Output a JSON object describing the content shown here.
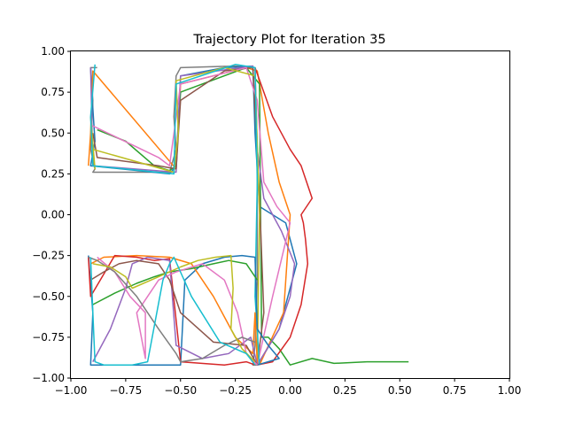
{
  "chart_data": {
    "type": "line",
    "title": "Trajectory Plot for Iteration 35",
    "xlabel": "",
    "ylabel": "",
    "xlim": [
      -1.0,
      1.0
    ],
    "ylim": [
      -1.0,
      1.0
    ],
    "grid": false,
    "legend": "none",
    "x_ticks": [
      "−1.00",
      "−0.75",
      "−0.50",
      "−0.25",
      "0.00",
      "0.25",
      "0.50",
      "0.75",
      "1.00"
    ],
    "x_tick_values": [
      -1.0,
      -0.75,
      -0.5,
      -0.25,
      0.0,
      0.25,
      0.5,
      0.75,
      1.0
    ],
    "y_ticks": [
      "−1.00",
      "−0.75",
      "−0.50",
      "−0.25",
      "0.00",
      "0.25",
      "0.50",
      "0.75",
      "1.00"
    ],
    "y_tick_values": [
      -1.0,
      -0.75,
      -0.5,
      -0.25,
      0.0,
      0.25,
      0.5,
      0.75,
      1.0
    ],
    "colors": [
      "#1f77b4",
      "#ff7f0e",
      "#2ca02c",
      "#d62728",
      "#9467bd",
      "#8c564b",
      "#e377c2",
      "#7f7f7f",
      "#bcbd22",
      "#17becf"
    ],
    "series": [
      {
        "color": "#7f7f7f",
        "x": [
          -0.88,
          -0.91,
          -0.9,
          -0.91,
          -0.89,
          -0.9,
          -0.55,
          -0.52,
          -0.53,
          -0.52,
          -0.5,
          -0.25,
          -0.16,
          -0.15,
          -0.15,
          -0.15,
          -0.16,
          -0.17,
          -0.15
        ],
        "y": [
          0.9,
          0.9,
          0.7,
          0.4,
          0.28,
          0.26,
          0.26,
          0.4,
          0.6,
          0.85,
          0.9,
          0.91,
          0.9,
          0.4,
          0.0,
          -0.4,
          -0.8,
          -0.92,
          -0.92
        ]
      },
      {
        "color": "#1f77b4",
        "x": [
          -0.91,
          -0.9,
          -0.89,
          -0.91,
          -0.55,
          -0.52,
          -0.5,
          -0.3,
          -0.17,
          -0.16,
          -0.14,
          -0.02,
          0.03,
          -0.05,
          -0.14,
          -0.15
        ],
        "y": [
          0.9,
          0.65,
          0.45,
          0.3,
          0.25,
          0.3,
          0.85,
          0.9,
          0.91,
          0.5,
          0.05,
          -0.05,
          -0.3,
          -0.7,
          -0.9,
          -0.92
        ]
      },
      {
        "color": "#ff7f0e",
        "x": [
          -0.92,
          -0.91,
          -0.9,
          -0.52,
          -0.5,
          -0.2,
          -0.15,
          -0.1,
          -0.05,
          0.0,
          -0.03,
          -0.14
        ],
        "y": [
          0.3,
          0.5,
          0.88,
          0.28,
          0.8,
          0.9,
          0.88,
          0.5,
          0.2,
          0.0,
          -0.6,
          -0.92
        ]
      },
      {
        "color": "#2ca02c",
        "x": [
          -0.88,
          -0.75,
          -0.62,
          -0.55,
          -0.52,
          -0.5,
          -0.2,
          -0.14,
          -0.13,
          -0.1,
          -0.05,
          0.0,
          0.1,
          0.2,
          0.35,
          0.5,
          0.54
        ],
        "y": [
          0.52,
          0.45,
          0.3,
          0.27,
          0.3,
          0.75,
          0.9,
          0.8,
          -0.75,
          -0.75,
          -0.82,
          -0.92,
          -0.88,
          -0.91,
          -0.9,
          -0.9,
          -0.9
        ]
      },
      {
        "color": "#d62728",
        "x": [
          -0.16,
          -0.08,
          0.0,
          0.05,
          0.1,
          0.05,
          0.06,
          0.07,
          0.08,
          0.05,
          0.0,
          -0.08,
          -0.15
        ],
        "y": [
          0.9,
          0.6,
          0.4,
          0.3,
          0.1,
          0.0,
          -0.05,
          -0.15,
          -0.3,
          -0.55,
          -0.75,
          -0.9,
          -0.92
        ]
      },
      {
        "color": "#9467bd",
        "x": [
          -0.91,
          -0.9,
          -0.52,
          -0.5,
          -0.17,
          -0.15,
          -0.12,
          -0.08,
          -0.04,
          0.02,
          0.0,
          -0.05,
          -0.15
        ],
        "y": [
          0.9,
          0.3,
          0.26,
          0.85,
          0.91,
          0.4,
          0.1,
          0.0,
          -0.1,
          -0.3,
          -0.5,
          -0.7,
          -0.92
        ]
      },
      {
        "color": "#8c564b",
        "x": [
          -0.9,
          -0.88,
          -0.6,
          -0.52,
          -0.5,
          -0.3,
          -0.17,
          -0.14,
          -0.12,
          -0.15
        ],
        "y": [
          0.5,
          0.35,
          0.3,
          0.28,
          0.7,
          0.88,
          0.9,
          0.1,
          -0.6,
          -0.92
        ]
      },
      {
        "color": "#e377c2",
        "x": [
          -0.91,
          -0.6,
          -0.55,
          -0.5,
          -0.2,
          -0.15,
          -0.12,
          -0.06,
          0.0,
          -0.08,
          -0.15
        ],
        "y": [
          0.55,
          0.35,
          0.3,
          0.8,
          0.9,
          0.7,
          0.2,
          0.05,
          -0.05,
          -0.5,
          -0.92
        ]
      },
      {
        "color": "#bcbd22",
        "x": [
          -0.91,
          -0.89,
          -0.9,
          -0.53,
          -0.51,
          -0.52,
          -0.3,
          -0.16,
          -0.14,
          -0.15
        ],
        "y": [
          0.6,
          0.28,
          0.4,
          0.26,
          0.5,
          0.82,
          0.9,
          0.85,
          0.0,
          -0.92
        ]
      },
      {
        "color": "#17becf",
        "x": [
          -0.89,
          -0.91,
          -0.9,
          -0.53,
          -0.52,
          -0.25,
          -0.16,
          -0.15,
          -0.16,
          -0.14
        ],
        "y": [
          0.92,
          0.6,
          0.3,
          0.25,
          0.8,
          0.92,
          0.9,
          0.2,
          -0.5,
          -0.92
        ]
      },
      {
        "color": "#1f77b4",
        "x": [
          -0.92,
          -0.9,
          -0.91,
          -0.5,
          -0.48,
          -0.4,
          -0.3,
          -0.22,
          -0.16,
          -0.15,
          -0.1,
          -0.05,
          -0.15
        ],
        "y": [
          -0.25,
          -0.6,
          -0.92,
          -0.92,
          -0.4,
          -0.3,
          -0.26,
          -0.25,
          -0.26,
          -0.7,
          -0.8,
          -0.88,
          -0.92
        ]
      },
      {
        "color": "#ff7f0e",
        "x": [
          -0.91,
          -0.85,
          -0.7,
          -0.55,
          -0.45,
          -0.35,
          -0.25,
          -0.17,
          -0.16,
          -0.15
        ],
        "y": [
          -0.3,
          -0.26,
          -0.25,
          -0.26,
          -0.3,
          -0.5,
          -0.75,
          -0.85,
          -0.6,
          -0.92
        ]
      },
      {
        "color": "#2ca02c",
        "x": [
          -0.9,
          -0.8,
          -0.7,
          -0.62,
          -0.55,
          -0.45,
          -0.35,
          -0.28,
          -0.2,
          -0.15
        ],
        "y": [
          -0.55,
          -0.48,
          -0.42,
          -0.38,
          -0.35,
          -0.33,
          -0.3,
          -0.28,
          -0.3,
          -0.4
        ]
      },
      {
        "color": "#d62728",
        "x": [
          -0.92,
          -0.91,
          -0.8,
          -0.7,
          -0.62,
          -0.55,
          -0.5,
          -0.3,
          -0.2,
          -0.16
        ],
        "y": [
          -0.26,
          -0.5,
          -0.25,
          -0.26,
          -0.28,
          -0.27,
          -0.9,
          -0.92,
          -0.9,
          -0.92
        ]
      },
      {
        "color": "#9467bd",
        "x": [
          -0.9,
          -0.82,
          -0.75,
          -0.72,
          -0.65,
          -0.55,
          -0.52,
          -0.4,
          -0.28,
          -0.18,
          -0.15
        ],
        "y": [
          -0.9,
          -0.7,
          -0.45,
          -0.3,
          -0.26,
          -0.28,
          -0.8,
          -0.88,
          -0.85,
          -0.75,
          -0.92
        ]
      },
      {
        "color": "#8c564b",
        "x": [
          -0.91,
          -0.85,
          -0.78,
          -0.7,
          -0.6,
          -0.55,
          -0.5,
          -0.35,
          -0.2,
          -0.15
        ],
        "y": [
          -0.4,
          -0.35,
          -0.3,
          -0.28,
          -0.3,
          -0.4,
          -0.6,
          -0.78,
          -0.8,
          -0.92
        ]
      },
      {
        "color": "#e377c2",
        "x": [
          -0.88,
          -0.8,
          -0.73,
          -0.66,
          -0.66,
          -0.7,
          -0.6,
          -0.52,
          -0.4,
          -0.3,
          -0.24,
          -0.2,
          -0.15
        ],
        "y": [
          -0.26,
          -0.35,
          -0.5,
          -0.6,
          -0.88,
          -0.6,
          -0.4,
          -0.35,
          -0.3,
          -0.4,
          -0.6,
          -0.85,
          -0.92
        ]
      },
      {
        "color": "#7f7f7f",
        "x": [
          -0.92,
          -0.88,
          -0.8,
          -0.7,
          -0.6,
          -0.52,
          -0.5,
          -0.4,
          -0.3,
          -0.22,
          -0.16
        ],
        "y": [
          -0.26,
          -0.28,
          -0.35,
          -0.5,
          -0.7,
          -0.85,
          -0.9,
          -0.88,
          -0.8,
          -0.75,
          -0.78
        ]
      },
      {
        "color": "#bcbd22",
        "x": [
          -0.9,
          -0.82,
          -0.75,
          -0.72,
          -0.6,
          -0.5,
          -0.42,
          -0.34,
          -0.27,
          -0.26,
          -0.27,
          -0.22,
          -0.16
        ],
        "y": [
          -0.3,
          -0.32,
          -0.38,
          -0.45,
          -0.38,
          -0.32,
          -0.28,
          -0.26,
          -0.25,
          -0.45,
          -0.7,
          -0.82,
          -0.9
        ]
      },
      {
        "color": "#17becf",
        "x": [
          -0.91,
          -0.9,
          -0.89,
          -0.85,
          -0.72,
          -0.65,
          -0.58,
          -0.55,
          -0.53,
          -0.45,
          -0.32,
          -0.2,
          -0.16
        ],
        "y": [
          -0.26,
          -0.6,
          -0.9,
          -0.92,
          -0.92,
          -0.9,
          -0.4,
          -0.3,
          -0.26,
          -0.5,
          -0.78,
          -0.85,
          -0.92
        ]
      }
    ]
  }
}
